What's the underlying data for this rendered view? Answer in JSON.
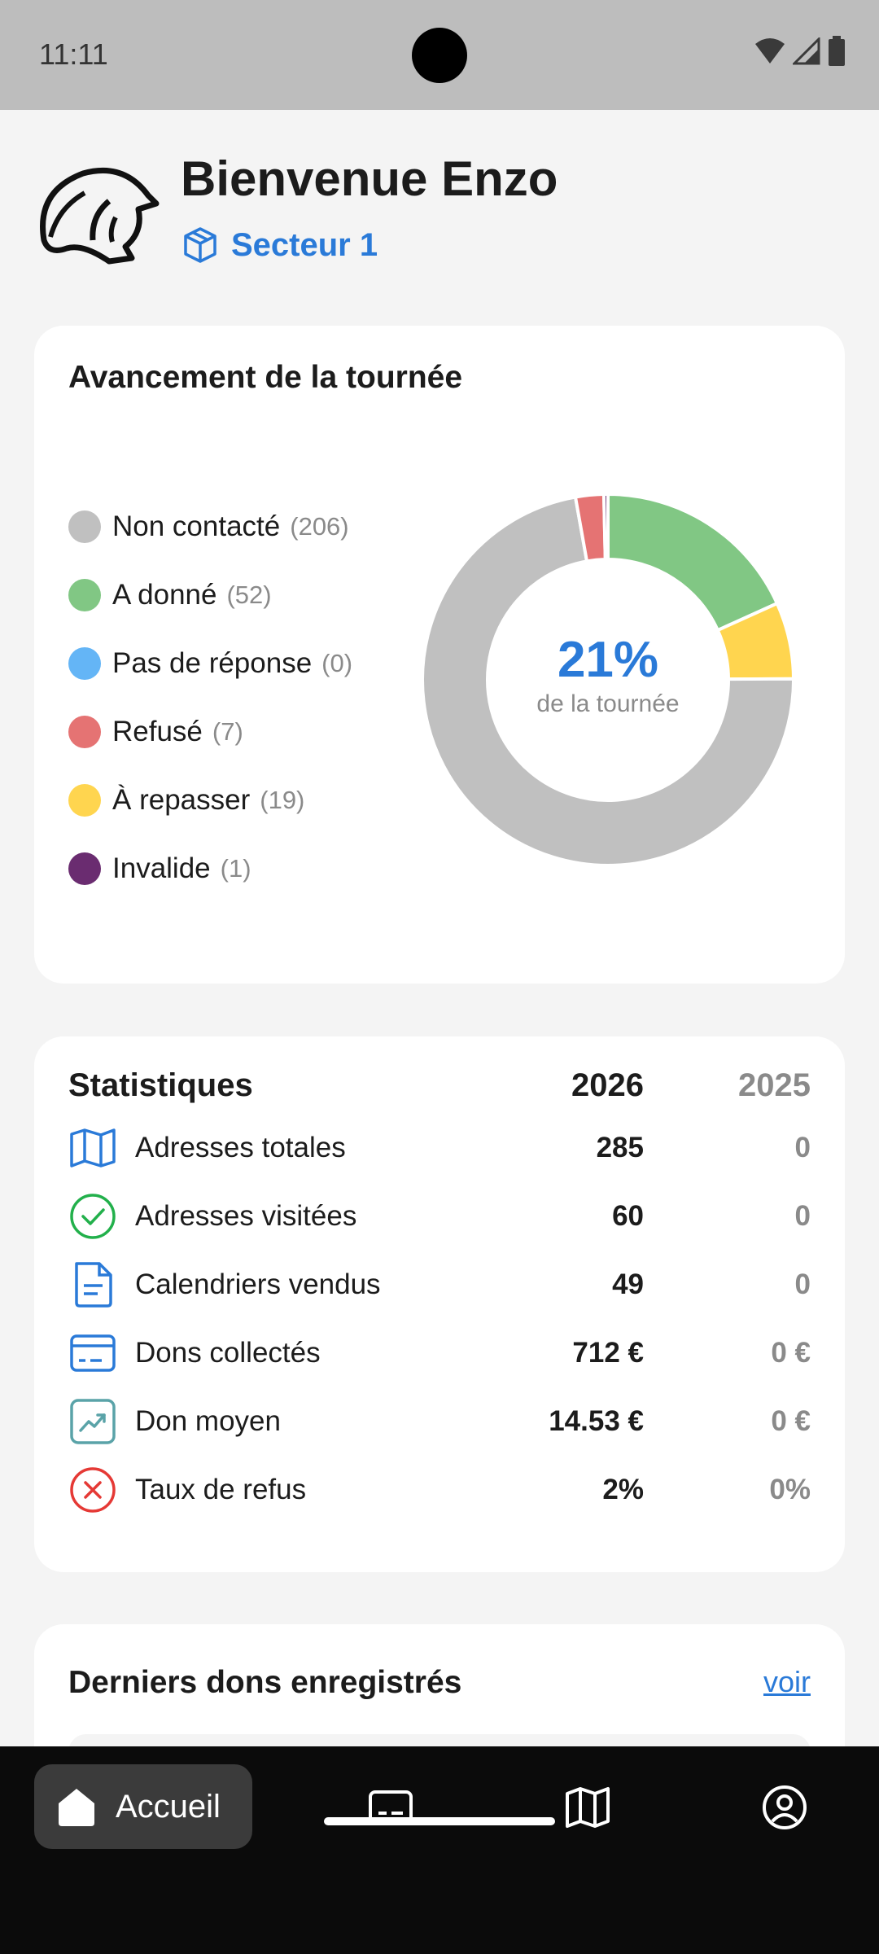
{
  "status_bar": {
    "time": "11:11"
  },
  "header": {
    "title": "Bienvenue Enzo",
    "sector": "Secteur 1"
  },
  "progress_card": {
    "title": "Avancement de la tournée",
    "percent": "21%",
    "percent_sub": "de la tournée",
    "legend": [
      {
        "label": "Non contacté",
        "count": "(206)",
        "color": "#c0c0c0",
        "value": 206
      },
      {
        "label": "A donné",
        "count": "(52)",
        "color": "#81c784",
        "value": 52
      },
      {
        "label": "Pas de réponse",
        "count": "(0)",
        "color": "#64b5f6",
        "value": 0
      },
      {
        "label": "Refusé",
        "count": "(7)",
        "color": "#e57373",
        "value": 7
      },
      {
        "label": "À repasser",
        "count": "(19)",
        "color": "#ffd54f",
        "value": 19
      },
      {
        "label": "Invalide",
        "count": "(1)",
        "color": "#6a2c70",
        "value": 1
      }
    ]
  },
  "stats_card": {
    "title": "Statistiques",
    "year_current": "2026",
    "year_previous": "2025",
    "rows": [
      {
        "icon": "map-icon",
        "label": "Adresses totales",
        "v2026": "285",
        "v2025": "0"
      },
      {
        "icon": "check-circle-icon",
        "label": "Adresses visitées",
        "v2026": "60",
        "v2025": "0"
      },
      {
        "icon": "document-icon",
        "label": "Calendriers vendus",
        "v2026": "49",
        "v2025": "0"
      },
      {
        "icon": "credit-card-icon",
        "label": "Dons collectés",
        "v2026": "712 €",
        "v2025": "0 €"
      },
      {
        "icon": "trend-icon",
        "label": "Don moyen",
        "v2026": "14.53 €",
        "v2025": "0 €"
      },
      {
        "icon": "x-circle-icon",
        "label": "Taux de refus",
        "v2026": "2%",
        "v2025": "0%"
      }
    ]
  },
  "donations_card": {
    "title": "Derniers dons enregistrés",
    "link": "voir"
  },
  "nav": {
    "home_label": "Accueil"
  },
  "colors": {
    "accent": "#2a7ad8"
  }
}
